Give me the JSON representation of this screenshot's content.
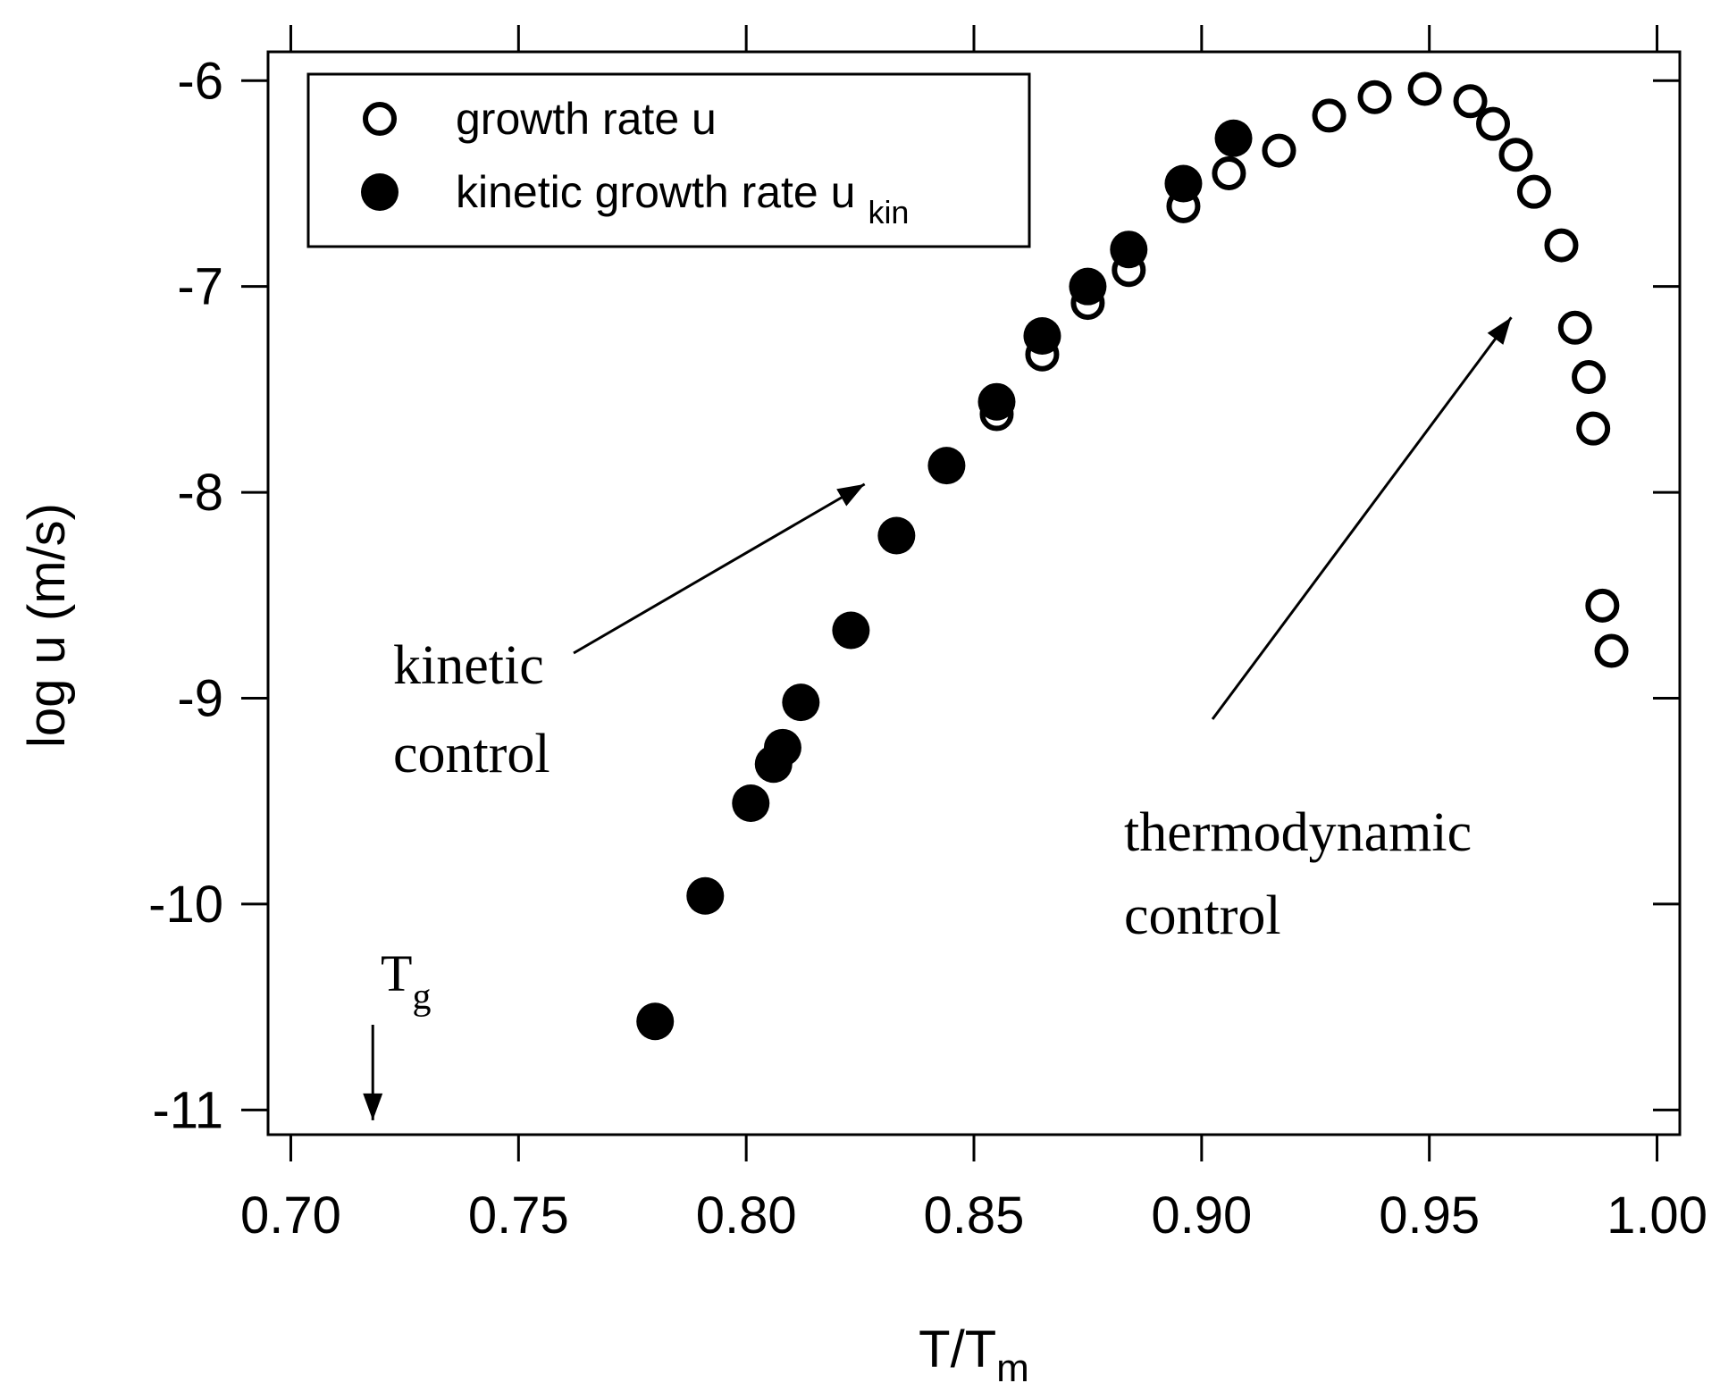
{
  "chart_data": {
    "type": "scatter",
    "xlabel": "T/T",
    "xlabel_sub": "m",
    "ylabel": "log u (m/s)",
    "xlim": [
      0.695,
      1.005
    ],
    "ylim": [
      -11.12,
      -5.86
    ],
    "x_ticks": [
      0.7,
      0.75,
      0.8,
      0.85,
      0.9,
      0.95,
      1.0
    ],
    "x_tick_labels": [
      "0.70",
      "0.75",
      "0.80",
      "0.85",
      "0.90",
      "0.95",
      "1.00"
    ],
    "y_ticks": [
      -6,
      -7,
      -8,
      -9,
      -10,
      -11
    ],
    "y_tick_labels": [
      "-6",
      "-7",
      "-8",
      "-9",
      "-10",
      "-11"
    ],
    "grid": false,
    "legend_position": "top-left",
    "series": [
      {
        "name": "growth rate u",
        "marker": "open-circle",
        "points": [
          {
            "x": 0.855,
            "y": -7.62
          },
          {
            "x": 0.865,
            "y": -7.33
          },
          {
            "x": 0.875,
            "y": -7.08
          },
          {
            "x": 0.884,
            "y": -6.92
          },
          {
            "x": 0.896,
            "y": -6.61
          },
          {
            "x": 0.906,
            "y": -6.45
          },
          {
            "x": 0.917,
            "y": -6.34
          },
          {
            "x": 0.928,
            "y": -6.17
          },
          {
            "x": 0.938,
            "y": -6.08
          },
          {
            "x": 0.949,
            "y": -6.04
          },
          {
            "x": 0.959,
            "y": -6.1
          },
          {
            "x": 0.964,
            "y": -6.21
          },
          {
            "x": 0.969,
            "y": -6.36
          },
          {
            "x": 0.973,
            "y": -6.54
          },
          {
            "x": 0.979,
            "y": -6.8
          },
          {
            "x": 0.982,
            "y": -7.2
          },
          {
            "x": 0.985,
            "y": -7.44
          },
          {
            "x": 0.986,
            "y": -7.69
          },
          {
            "x": 0.988,
            "y": -8.55
          },
          {
            "x": 0.99,
            "y": -8.77
          }
        ]
      },
      {
        "name": "kinetic growth rate u",
        "name_sub": "kin",
        "marker": "filled-circle",
        "points": [
          {
            "x": 0.78,
            "y": -10.57
          },
          {
            "x": 0.791,
            "y": -9.96
          },
          {
            "x": 0.801,
            "y": -9.51
          },
          {
            "x": 0.806,
            "y": -9.32
          },
          {
            "x": 0.808,
            "y": -9.24
          },
          {
            "x": 0.812,
            "y": -9.02
          },
          {
            "x": 0.823,
            "y": -8.67
          },
          {
            "x": 0.833,
            "y": -8.21
          },
          {
            "x": 0.844,
            "y": -7.87
          },
          {
            "x": 0.855,
            "y": -7.56
          },
          {
            "x": 0.865,
            "y": -7.24
          },
          {
            "x": 0.875,
            "y": -7.0
          },
          {
            "x": 0.884,
            "y": -6.82
          },
          {
            "x": 0.896,
            "y": -6.5
          },
          {
            "x": 0.907,
            "y": -6.28
          }
        ]
      }
    ],
    "annotations": [
      {
        "text_lines": [
          "kinetic",
          "control"
        ],
        "arrow_to": {
          "x": 0.826,
          "y": -7.96
        }
      },
      {
        "text_lines": [
          "thermodynamic",
          "control"
        ],
        "arrow_to": {
          "x": 0.968,
          "y": -7.15
        }
      },
      {
        "text": "T",
        "subscript": "g",
        "arrow_to": {
          "x": 0.718,
          "y": -11.05
        }
      }
    ]
  }
}
